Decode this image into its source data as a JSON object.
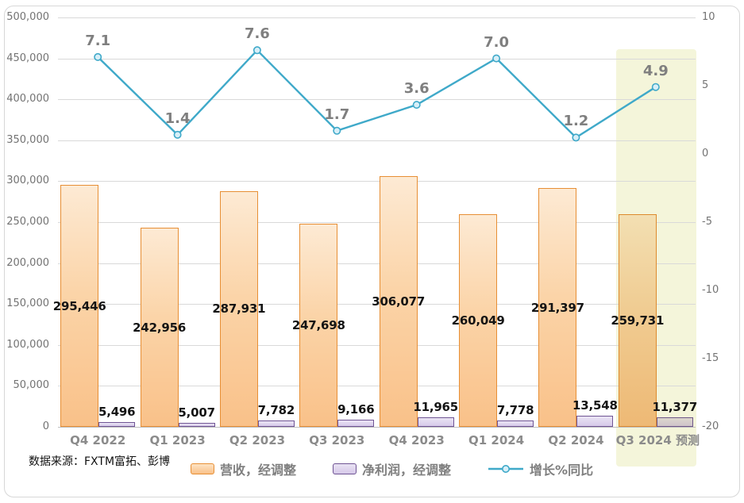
{
  "source_note": "数据来源：FXTM富拓、彭博",
  "legend": [
    {
      "label": "营收，经调整",
      "swatch": "orange-bar"
    },
    {
      "label": "净利润，经调整",
      "swatch": "purple-bar"
    },
    {
      "label": "增长%同比",
      "swatch": "teal-line"
    }
  ],
  "colors": {
    "revenue_fill_top": "#fdead4",
    "revenue_fill_bottom": "#f9c189",
    "revenue_border": "#e78f35",
    "profit_fill_top": "#eae4f4",
    "profit_fill_bottom": "#d6c9e9",
    "profit_border": "#6f5494",
    "growth_line": "#3fa9c9",
    "marker_fill": "#d8eff8",
    "forecast_band": "#f4f5da",
    "gridline": "#d9d9d9",
    "value_label": "#141414",
    "axis_label": "#737373",
    "category_label": "#8b8b8b",
    "growth_label": "#7f7f7f"
  },
  "chart_data": {
    "type": "combo",
    "categories": [
      "Q4 2022",
      "Q1 2023",
      "Q2 2023",
      "Q3 2023",
      "Q4 2023",
      "Q1 2024",
      "Q2 2024",
      "Q3 2024 预测"
    ],
    "forecast_index": 7,
    "grid": true,
    "legend_position": "bottom",
    "series": [
      {
        "name": "营收，经调整",
        "type": "bar",
        "axis": "left",
        "values": [
          295446,
          242956,
          287931,
          247698,
          306077,
          260049,
          291397,
          259731
        ],
        "labels": [
          "295,446",
          "242,956",
          "287,931",
          "247,698",
          "306,077",
          "260,049",
          "291,397",
          "259,731"
        ]
      },
      {
        "name": "净利润，经调整",
        "type": "bar",
        "axis": "left",
        "values": [
          5496,
          5007,
          7782,
          9166,
          11965,
          7778,
          13548,
          11377
        ],
        "labels": [
          "5,496",
          "5,007",
          "7,782",
          "9,166",
          "11,965",
          "7,778",
          "13,548",
          "11,377"
        ]
      },
      {
        "name": "增长%同比",
        "type": "line",
        "axis": "right",
        "values": [
          7.1,
          1.4,
          7.6,
          1.7,
          3.6,
          7.0,
          1.2,
          4.9
        ],
        "labels": [
          "7.1",
          "1.4",
          "7.6",
          "1.7",
          "3.6",
          "7.0",
          "1.2",
          "4.9"
        ]
      }
    ],
    "left_axis": {
      "min": 0,
      "max": 500000,
      "step": 50000,
      "ticks": [
        "500,000",
        "450,000",
        "400,000",
        "350,000",
        "300,000",
        "250,000",
        "200,000",
        "150,000",
        "100,000",
        "50,000",
        "0"
      ]
    },
    "right_axis": {
      "min": -20,
      "max": 10,
      "step": 5,
      "ticks": [
        "10",
        "5",
        "0",
        "-5",
        "-10",
        "-15",
        "-20"
      ]
    }
  }
}
